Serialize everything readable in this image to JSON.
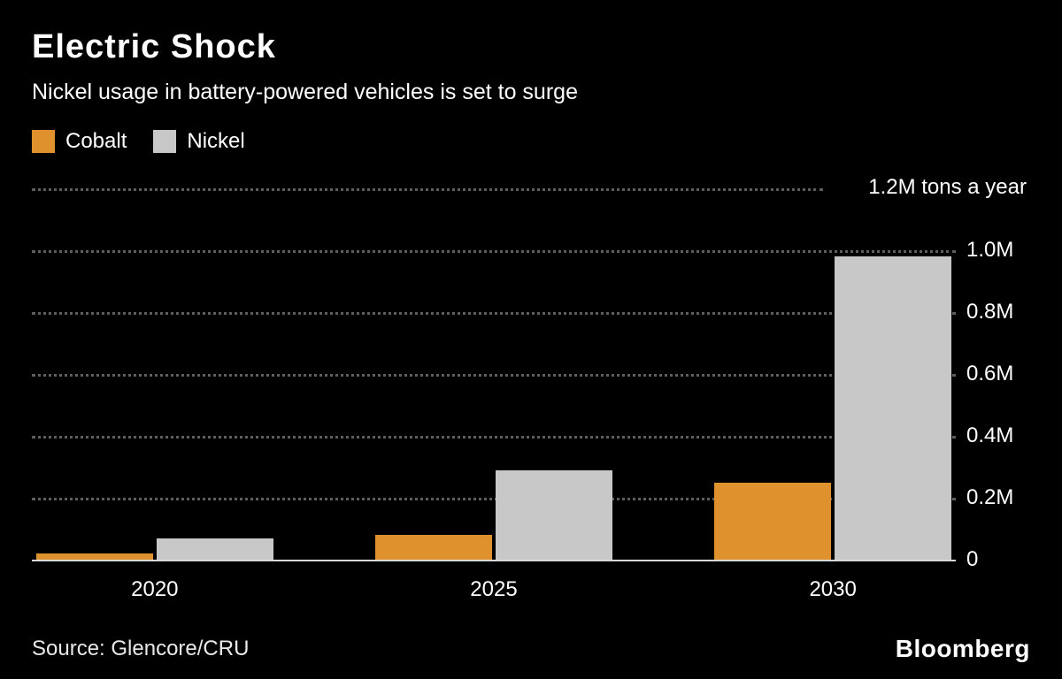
{
  "header": {
    "title": "Electric Shock",
    "subtitle": "Nickel usage in battery-powered vehicles is set to surge"
  },
  "legend": [
    {
      "label": "Cobalt",
      "color": "#de912d"
    },
    {
      "label": "Nickel",
      "color": "#c8c8c8"
    }
  ],
  "chart_data": {
    "type": "bar",
    "title": "Electric Shock",
    "subtitle": "Nickel usage in battery-powered vehicles is set to surge",
    "categories": [
      "2020",
      "2025",
      "2030"
    ],
    "series": [
      {
        "name": "Cobalt",
        "color": "#de912d",
        "values": [
          0.02,
          0.08,
          0.25
        ]
      },
      {
        "name": "Nickel",
        "color": "#c8c8c8",
        "values": [
          0.07,
          0.29,
          0.98
        ]
      }
    ],
    "unit": "M tons a year",
    "ylim": [
      0,
      1.2
    ],
    "yticks": [
      0,
      0.2,
      0.4,
      0.6,
      0.8,
      1.0
    ],
    "ytick_labels": [
      "0",
      "0.2M",
      "0.4M",
      "0.6M",
      "0.8M",
      "1.0M"
    ],
    "top_gridline_value": 1.2,
    "top_annotation": "1.2M tons a year",
    "grid": "horizontal-dotted",
    "legend_position": "top-left"
  },
  "footer": {
    "source": "Source: Glencore/CRU",
    "brand": "Bloomberg"
  }
}
